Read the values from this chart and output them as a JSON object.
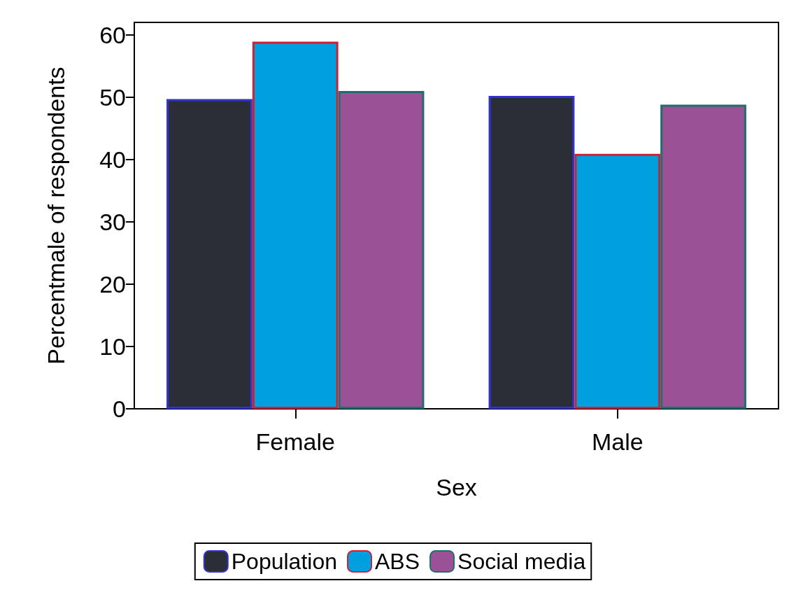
{
  "chart_data": {
    "type": "bar",
    "xlabel": "Sex",
    "ylabel": "Percentmale of respondents",
    "categories": [
      "Female",
      "Male"
    ],
    "series": [
      {
        "name": "Population",
        "color": "#2b2e36",
        "values": [
          49.7,
          50.2
        ]
      },
      {
        "name": "ABS",
        "color": "#009fdf",
        "values": [
          58.9,
          40.9
        ]
      },
      {
        "name": "Social media",
        "color": "#9b5196",
        "values": [
          51.0,
          48.8
        ]
      }
    ],
    "ylim": [
      0,
      62
    ],
    "yticks": [
      0,
      10,
      20,
      30,
      40,
      50,
      60
    ],
    "grid": false,
    "legend": "bottom"
  }
}
